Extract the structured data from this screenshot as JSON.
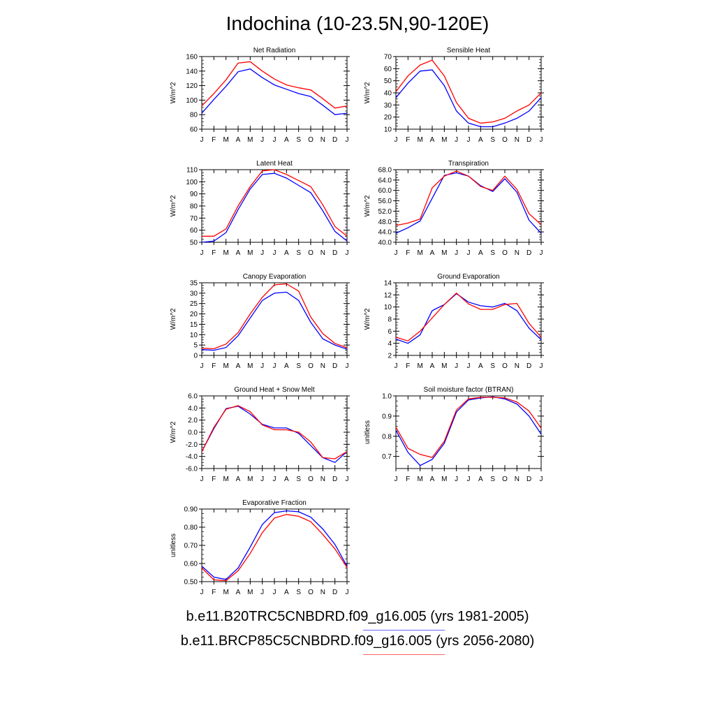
{
  "page_title": "Indochina (10-23.5N,90-120E)",
  "months": [
    "J",
    "F",
    "M",
    "A",
    "M",
    "J",
    "J",
    "A",
    "S",
    "O",
    "N",
    "D",
    "J"
  ],
  "legend": [
    {
      "label": "b.e11.B20TRC5CNBDRD.f09_g16.005 (yrs 1981-2005)",
      "color": "#0000ff"
    },
    {
      "label": "b.e11.BRCP85C5CNBDRD.f09_g16.005 (yrs 2056-2080)",
      "color": "#ff0000"
    }
  ],
  "chart_data": [
    {
      "type": "line",
      "title": "Net Radiation",
      "ylabel": "W/m^2",
      "ylim": [
        60,
        160
      ],
      "yticks": [
        60,
        80,
        100,
        120,
        140,
        160
      ],
      "ytick_labels": [
        "60",
        "80",
        "100",
        "120",
        "140",
        "160"
      ],
      "series": [
        {
          "color": "#0000ff",
          "values": [
            82,
            101,
            119,
            139,
            143,
            131,
            121,
            115,
            109,
            105,
            93,
            80,
            82
          ]
        },
        {
          "color": "#ff0000",
          "values": [
            92,
            109,
            128,
            151,
            153,
            140,
            129,
            121,
            117,
            114,
            102,
            89,
            92
          ]
        }
      ]
    },
    {
      "type": "line",
      "title": "Sensible Heat",
      "ylabel": "W/m^2",
      "ylim": [
        10,
        70
      ],
      "yticks": [
        10,
        20,
        30,
        40,
        50,
        60,
        70
      ],
      "ytick_labels": [
        "10",
        "20",
        "30",
        "40",
        "50",
        "60",
        "70"
      ],
      "series": [
        {
          "color": "#0000ff",
          "values": [
            36,
            48,
            58,
            59,
            46,
            25,
            15,
            12,
            12,
            15,
            19,
            25,
            36
          ]
        },
        {
          "color": "#ff0000",
          "values": [
            41,
            54,
            63,
            67,
            54,
            32,
            19,
            15,
            16,
            19,
            25,
            30,
            40
          ]
        }
      ]
    },
    {
      "type": "line",
      "title": "Latent Heat",
      "ylabel": "W/m^2",
      "ylim": [
        50,
        110
      ],
      "yticks": [
        50,
        60,
        70,
        80,
        90,
        100,
        110
      ],
      "ytick_labels": [
        "50",
        "60",
        "70",
        "80",
        "90",
        "100",
        "110"
      ],
      "series": [
        {
          "color": "#0000ff",
          "values": [
            50,
            51,
            58,
            77,
            94,
            106,
            107,
            103,
            97,
            91,
            76,
            59,
            51
          ]
        },
        {
          "color": "#ff0000",
          "values": [
            55,
            55,
            61,
            80,
            96,
            109,
            110,
            106,
            101,
            96,
            81,
            63,
            55
          ]
        }
      ]
    },
    {
      "type": "line",
      "title": "Transpiration",
      "ylabel": "W/m^2",
      "ylim": [
        40,
        68
      ],
      "yticks": [
        40,
        44,
        48,
        52,
        56,
        60,
        64,
        68
      ],
      "ytick_labels": [
        "40.0",
        "44.0",
        "48.0",
        "52.0",
        "56.0",
        "60.0",
        "64.0",
        "68.0"
      ],
      "series": [
        {
          "color": "#0000ff",
          "values": [
            43.5,
            45.6,
            48.2,
            57,
            65.8,
            66.8,
            65.5,
            61.8,
            59.6,
            64.5,
            59.3,
            48.5,
            43.5
          ]
        },
        {
          "color": "#ff0000",
          "values": [
            46.5,
            47.4,
            49,
            61,
            65.5,
            67.5,
            65.5,
            61.5,
            60,
            65.5,
            60.4,
            51,
            46.8
          ]
        }
      ]
    },
    {
      "type": "line",
      "title": "Canopy Evaporation",
      "ylabel": "W/m^2",
      "ylim": [
        0,
        35
      ],
      "yticks": [
        0,
        5,
        10,
        15,
        20,
        25,
        30,
        35
      ],
      "ytick_labels": [
        "0",
        "5",
        "10",
        "15",
        "20",
        "25",
        "30",
        "35"
      ],
      "series": [
        {
          "color": "#0000ff",
          "values": [
            2.8,
            2.5,
            3.8,
            9.5,
            18,
            26.5,
            30,
            30.5,
            26.5,
            16,
            8,
            5,
            3
          ]
        },
        {
          "color": "#ff0000",
          "values": [
            3.5,
            3.2,
            5.5,
            11,
            20,
            28,
            34,
            34.5,
            31,
            18.5,
            10.5,
            5.8,
            3.7
          ]
        }
      ]
    },
    {
      "type": "line",
      "title": "Ground Evaporation",
      "ylabel": "W/m^2",
      "ylim": [
        2,
        14
      ],
      "yticks": [
        2,
        4,
        6,
        8,
        10,
        12,
        14
      ],
      "ytick_labels": [
        "2",
        "4",
        "6",
        "8",
        "10",
        "12",
        "14"
      ],
      "series": [
        {
          "color": "#0000ff",
          "values": [
            4.7,
            4,
            5.4,
            9.4,
            10.4,
            12.2,
            10.8,
            10.2,
            10,
            10.6,
            9.4,
            6.5,
            4.6
          ]
        },
        {
          "color": "#ff0000",
          "values": [
            5,
            4.4,
            6,
            8.2,
            10.4,
            12.3,
            10.5,
            9.6,
            9.6,
            10.4,
            10.6,
            7.3,
            5
          ]
        }
      ]
    },
    {
      "type": "line",
      "title": "Ground Heat + Snow Melt",
      "ylabel": "W/m^2",
      "ylim": [
        -6,
        6
      ],
      "yticks": [
        -6,
        -4,
        -2,
        0,
        2,
        4,
        6
      ],
      "ytick_labels": [
        "-6.0",
        "-4.0",
        "-2.0",
        "0.0",
        "2.0",
        "4.0",
        "6.0"
      ],
      "series": [
        {
          "color": "#0000ff",
          "values": [
            -3.2,
            0.6,
            3.9,
            4.3,
            3,
            1.3,
            0.7,
            0.7,
            -0.2,
            -2.2,
            -4.2,
            -5,
            -3.2
          ]
        },
        {
          "color": "#ff0000",
          "values": [
            -3.2,
            0.8,
            3.8,
            4.4,
            3.4,
            1.2,
            0.4,
            0.4,
            0,
            -1.6,
            -4.2,
            -4.4,
            -3.2
          ]
        }
      ]
    },
    {
      "type": "line",
      "title": "Soil moisture factor (BTRAN)",
      "ylabel": "unitless",
      "ylim": [
        0.64,
        1.0
      ],
      "yticks": [
        0.7,
        0.8,
        0.9,
        1.0
      ],
      "ytick_labels": [
        "0.7",
        "0.8",
        "0.9",
        "1.0"
      ],
      "series": [
        {
          "color": "#0000ff",
          "values": [
            0.83,
            0.72,
            0.655,
            0.685,
            0.765,
            0.92,
            0.98,
            0.99,
            0.995,
            0.985,
            0.96,
            0.9,
            0.81
          ]
        },
        {
          "color": "#ff0000",
          "values": [
            0.845,
            0.74,
            0.71,
            0.695,
            0.775,
            0.93,
            0.985,
            0.993,
            0.993,
            0.99,
            0.97,
            0.925,
            0.84
          ]
        }
      ]
    },
    {
      "type": "line",
      "title": "Evaporative Fraction",
      "ylabel": "unitless",
      "ylim": [
        0.5,
        0.9
      ],
      "yticks": [
        0.5,
        0.6,
        0.7,
        0.8,
        0.9
      ],
      "ytick_labels": [
        "0.50",
        "0.60",
        "0.70",
        "0.80",
        "0.90"
      ],
      "series": [
        {
          "color": "#0000ff",
          "values": [
            0.585,
            0.525,
            0.512,
            0.575,
            0.69,
            0.815,
            0.88,
            0.89,
            0.885,
            0.855,
            0.79,
            0.705,
            0.585
          ]
        },
        {
          "color": "#ff0000",
          "values": [
            0.575,
            0.51,
            0.505,
            0.56,
            0.655,
            0.77,
            0.85,
            0.87,
            0.86,
            0.83,
            0.76,
            0.68,
            0.578
          ]
        }
      ]
    }
  ]
}
